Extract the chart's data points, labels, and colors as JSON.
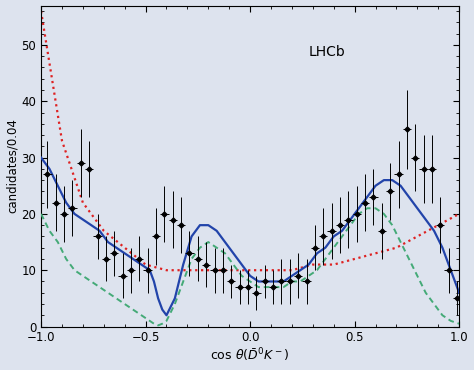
{
  "title": "LHCb",
  "ylabel": "candidates/0.04",
  "xlim": [
    -1,
    1
  ],
  "ylim": [
    0,
    57
  ],
  "yticks": [
    0,
    10,
    20,
    30,
    40,
    50
  ],
  "xticks": [
    -1,
    -0.5,
    0,
    0.5,
    1
  ],
  "background_color": "#dde3ee",
  "data_x": [
    -0.97,
    -0.93,
    -0.89,
    -0.85,
    -0.81,
    -0.77,
    -0.73,
    -0.69,
    -0.65,
    -0.61,
    -0.57,
    -0.53,
    -0.49,
    -0.45,
    -0.41,
    -0.37,
    -0.33,
    -0.29,
    -0.25,
    -0.21,
    -0.17,
    -0.13,
    -0.09,
    -0.05,
    -0.01,
    0.03,
    0.07,
    0.11,
    0.15,
    0.19,
    0.23,
    0.27,
    0.31,
    0.35,
    0.39,
    0.43,
    0.47,
    0.51,
    0.55,
    0.59,
    0.63,
    0.67,
    0.71,
    0.75,
    0.79,
    0.83,
    0.87,
    0.91,
    0.95,
    0.99
  ],
  "data_y": [
    27,
    22,
    20,
    21,
    29,
    28,
    16,
    12,
    13,
    9,
    10,
    12,
    10,
    16,
    20,
    19,
    18,
    13,
    12,
    11,
    10,
    10,
    8,
    7,
    7,
    6,
    8,
    7,
    8,
    8,
    9,
    8,
    14,
    16,
    17,
    18,
    19,
    20,
    22,
    23,
    17,
    24,
    27,
    35,
    30,
    28,
    28,
    18,
    10,
    5
  ],
  "data_yerr": [
    6,
    5,
    5,
    5,
    6,
    5,
    4,
    4,
    4,
    4,
    4,
    4,
    4,
    5,
    5,
    5,
    5,
    4,
    4,
    4,
    4,
    4,
    3,
    3,
    3,
    3,
    3,
    3,
    4,
    4,
    4,
    4,
    4,
    5,
    5,
    5,
    5,
    5,
    5,
    5,
    5,
    5,
    6,
    7,
    6,
    6,
    6,
    5,
    4,
    3
  ],
  "data_xerr": 0.02,
  "blue_x": [
    -1.0,
    -0.96,
    -0.92,
    -0.88,
    -0.84,
    -0.8,
    -0.76,
    -0.72,
    -0.68,
    -0.64,
    -0.6,
    -0.56,
    -0.52,
    -0.48,
    -0.46,
    -0.44,
    -0.42,
    -0.4,
    -0.36,
    -0.32,
    -0.28,
    -0.24,
    -0.2,
    -0.16,
    -0.12,
    -0.08,
    -0.04,
    0.0,
    0.04,
    0.08,
    0.12,
    0.16,
    0.2,
    0.24,
    0.28,
    0.32,
    0.36,
    0.4,
    0.44,
    0.48,
    0.52,
    0.56,
    0.6,
    0.64,
    0.68,
    0.72,
    0.76,
    0.8,
    0.84,
    0.88,
    0.92,
    0.96,
    1.0
  ],
  "blue_y": [
    30,
    28,
    25,
    22,
    20,
    19,
    18,
    17,
    15,
    14,
    13,
    12,
    11,
    10,
    8,
    5,
    3,
    2,
    5,
    11,
    16,
    18,
    18,
    17,
    15,
    13,
    11,
    9,
    8,
    8,
    8,
    8,
    9,
    10,
    11,
    13,
    14,
    16,
    17,
    19,
    21,
    23,
    25,
    26,
    26,
    25,
    23,
    21,
    19,
    17,
    14,
    10,
    6
  ],
  "green_x": [
    -1.0,
    -0.96,
    -0.92,
    -0.88,
    -0.84,
    -0.8,
    -0.76,
    -0.72,
    -0.68,
    -0.64,
    -0.6,
    -0.56,
    -0.52,
    -0.48,
    -0.46,
    -0.44,
    -0.42,
    -0.4,
    -0.36,
    -0.32,
    -0.28,
    -0.24,
    -0.2,
    -0.16,
    -0.12,
    -0.08,
    -0.04,
    0.0,
    0.04,
    0.08,
    0.12,
    0.16,
    0.2,
    0.24,
    0.28,
    0.32,
    0.36,
    0.4,
    0.44,
    0.48,
    0.52,
    0.56,
    0.6,
    0.64,
    0.68,
    0.72,
    0.76,
    0.8,
    0.84,
    0.88,
    0.92,
    0.96,
    1.0
  ],
  "green_y": [
    20,
    17,
    15,
    12,
    10,
    9,
    8,
    7,
    6,
    5,
    4,
    3,
    2,
    1,
    0.5,
    0.2,
    0.5,
    1,
    4,
    8,
    12,
    14,
    15,
    14,
    13,
    11,
    9,
    8,
    7,
    7,
    7,
    7,
    8,
    8,
    9,
    10,
    12,
    14,
    16,
    18,
    20,
    21,
    21,
    20,
    18,
    15,
    12,
    9,
    6,
    4,
    2,
    1,
    0.5
  ],
  "red_x": [
    -1.0,
    -0.9,
    -0.8,
    -0.7,
    -0.6,
    -0.5,
    -0.4,
    -0.3,
    -0.2,
    -0.1,
    0.0,
    0.1,
    0.2,
    0.3,
    0.4,
    0.5,
    0.6,
    0.7,
    0.8,
    0.9,
    1.0
  ],
  "red_y": [
    56,
    33,
    22,
    17,
    14,
    11,
    10,
    10,
    10,
    10,
    10,
    10,
    10,
    11,
    11,
    12,
    13,
    14,
    16,
    18,
    20
  ],
  "blue_color": "#2244aa",
  "green_color": "#44aa77",
  "red_color": "#dd2222"
}
